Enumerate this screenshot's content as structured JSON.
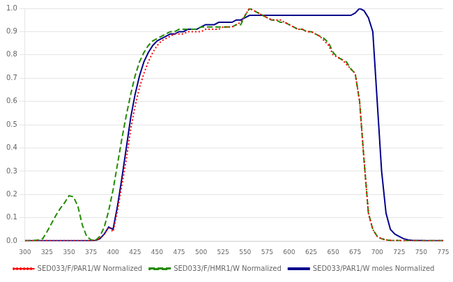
{
  "chart_data": {
    "type": "line",
    "x": [
      300,
      305,
      310,
      315,
      320,
      325,
      330,
      335,
      340,
      345,
      350,
      355,
      360,
      365,
      370,
      375,
      380,
      385,
      390,
      395,
      400,
      405,
      410,
      415,
      420,
      425,
      430,
      435,
      440,
      445,
      450,
      455,
      460,
      465,
      470,
      475,
      480,
      485,
      490,
      495,
      500,
      505,
      510,
      515,
      520,
      525,
      530,
      535,
      540,
      545,
      550,
      555,
      560,
      565,
      570,
      575,
      580,
      585,
      590,
      595,
      600,
      605,
      610,
      615,
      620,
      625,
      630,
      635,
      640,
      645,
      650,
      655,
      660,
      665,
      670,
      675,
      680,
      685,
      690,
      695,
      700,
      705,
      710,
      715,
      720,
      725,
      730,
      735,
      740,
      745,
      750,
      755,
      760,
      765,
      770,
      775
    ],
    "series": [
      {
        "name": "SED033/F/PAR1/W Normalized",
        "color": "#ff0000",
        "line_style": "dotted",
        "values": [
          0.001,
          0.001,
          0.001,
          0.001,
          0.001,
          0.001,
          0.001,
          0.001,
          0.001,
          0.001,
          0.001,
          0.001,
          0.001,
          0.001,
          0.001,
          0.001,
          0.003,
          0.01,
          0.03,
          0.06,
          0.04,
          0.13,
          0.24,
          0.35,
          0.48,
          0.58,
          0.66,
          0.72,
          0.77,
          0.81,
          0.84,
          0.86,
          0.87,
          0.88,
          0.89,
          0.89,
          0.89,
          0.9,
          0.9,
          0.9,
          0.9,
          0.91,
          0.91,
          0.91,
          0.91,
          0.92,
          0.92,
          0.92,
          0.93,
          0.94,
          0.97,
          1.0,
          0.99,
          0.98,
          0.97,
          0.96,
          0.95,
          0.95,
          0.95,
          0.94,
          0.93,
          0.92,
          0.91,
          0.91,
          0.9,
          0.9,
          0.89,
          0.88,
          0.86,
          0.84,
          0.8,
          0.79,
          0.78,
          0.76,
          0.74,
          0.72,
          0.6,
          0.35,
          0.12,
          0.05,
          0.02,
          0.01,
          0.005,
          0.003,
          0.002,
          0.002,
          0.001,
          0.001,
          0.001,
          0.001,
          0.001,
          0.001,
          0.001,
          0.001,
          0.001,
          0.001
        ]
      },
      {
        "name": "SED033/F/HMR1/W Normalized",
        "color": "#228B00",
        "line_style": "dashed",
        "values": [
          0.001,
          0.001,
          0.002,
          0.005,
          0.01,
          0.04,
          0.075,
          0.11,
          0.14,
          0.165,
          0.195,
          0.19,
          0.15,
          0.07,
          0.02,
          0.005,
          0.003,
          0.02,
          0.06,
          0.13,
          0.22,
          0.33,
          0.44,
          0.54,
          0.63,
          0.71,
          0.77,
          0.81,
          0.84,
          0.86,
          0.87,
          0.88,
          0.89,
          0.9,
          0.9,
          0.91,
          0.91,
          0.91,
          0.91,
          0.91,
          0.92,
          0.92,
          0.92,
          0.92,
          0.92,
          0.92,
          0.92,
          0.92,
          0.93,
          0.93,
          0.97,
          1.0,
          0.99,
          0.98,
          0.97,
          0.96,
          0.95,
          0.95,
          0.94,
          0.94,
          0.93,
          0.92,
          0.91,
          0.91,
          0.9,
          0.9,
          0.89,
          0.88,
          0.87,
          0.85,
          0.81,
          0.79,
          0.78,
          0.77,
          0.74,
          0.72,
          0.6,
          0.35,
          0.12,
          0.05,
          0.02,
          0.01,
          0.005,
          0.003,
          0.002,
          0.002,
          0.001,
          0.001,
          0.001,
          0.001,
          0.001,
          0.001,
          0.001,
          0.001,
          0.001,
          0.001
        ]
      },
      {
        "name": "SED033/PAR1/W moles Normalized",
        "color": "#00008b",
        "line_style": "solid",
        "values": [
          0.001,
          0.001,
          0.001,
          0.001,
          0.001,
          0.001,
          0.001,
          0.001,
          0.001,
          0.001,
          0.001,
          0.001,
          0.001,
          0.001,
          0.001,
          0.001,
          0.003,
          0.01,
          0.03,
          0.06,
          0.05,
          0.15,
          0.27,
          0.4,
          0.53,
          0.63,
          0.71,
          0.77,
          0.81,
          0.84,
          0.86,
          0.87,
          0.88,
          0.89,
          0.89,
          0.9,
          0.9,
          0.91,
          0.91,
          0.91,
          0.92,
          0.93,
          0.93,
          0.93,
          0.94,
          0.94,
          0.94,
          0.94,
          0.95,
          0.95,
          0.96,
          0.97,
          0.97,
          0.97,
          0.97,
          0.97,
          0.97,
          0.97,
          0.97,
          0.97,
          0.97,
          0.97,
          0.97,
          0.97,
          0.97,
          0.97,
          0.97,
          0.97,
          0.97,
          0.97,
          0.97,
          0.97,
          0.97,
          0.97,
          0.97,
          0.98,
          1.0,
          0.99,
          0.96,
          0.9,
          0.6,
          0.3,
          0.12,
          0.05,
          0.03,
          0.02,
          0.01,
          0.005,
          0.003,
          0.002,
          0.002,
          0.001,
          0.001,
          0.001,
          0.001,
          0.001
        ]
      }
    ],
    "xlim": [
      300,
      775
    ],
    "xticks": [
      300,
      325,
      350,
      375,
      400,
      425,
      450,
      475,
      500,
      525,
      550,
      575,
      600,
      625,
      650,
      675,
      700,
      725,
      750,
      775
    ],
    "ylim": [
      0,
      1.0
    ],
    "yticks": [
      {
        "value": 0,
        "label": "0.0"
      },
      0.1,
      0.2,
      0.3,
      0.4,
      0.5,
      0.6,
      0.7,
      0.8,
      0.9,
      {
        "value": 1,
        "label": "1.0"
      }
    ],
    "grid": "y",
    "legend": "bottom"
  }
}
